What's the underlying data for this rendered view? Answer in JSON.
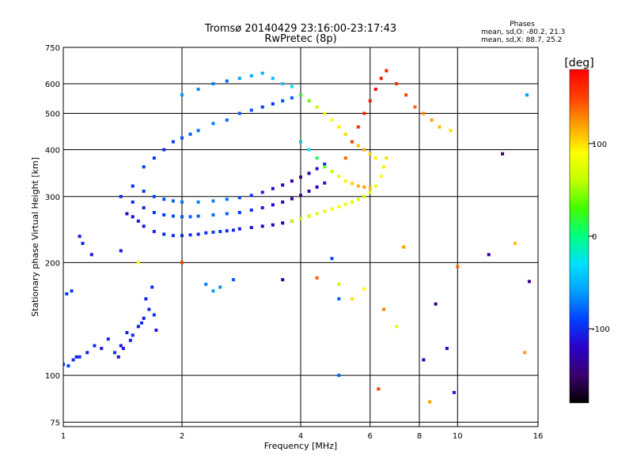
{
  "chart_data": {
    "type": "scatter",
    "title": "Tromsø 20140429 23:16:00-23:17:43",
    "subtitle": "RwPretec (8p)",
    "stats": {
      "heading": "Phases",
      "line_o": "mean, sd,O: -80.2, 21.3",
      "line_x": "mean, sd,X: 88.7, 25.2"
    },
    "xlabel": "Frequency [MHz]",
    "ylabel": "Stationary phase Virtual Height [km]",
    "x_scale": "log",
    "y_scale": "log",
    "xlim": [
      1,
      16
    ],
    "ylim": [
      73,
      750
    ],
    "x_ticks": [
      1,
      2,
      4,
      6,
      8,
      10,
      16
    ],
    "x_tick_labels": [
      "1",
      "2",
      "4",
      "6",
      "8",
      "10",
      "16"
    ],
    "y_ticks": [
      75,
      100,
      200,
      300,
      400,
      500,
      600,
      750
    ],
    "y_tick_labels": [
      "75",
      "100",
      "200",
      "300",
      "400",
      "500",
      "600",
      "750"
    ],
    "grid": true,
    "colorbar": {
      "label": "[deg]",
      "range": [
        -180,
        180
      ],
      "ticks": [
        100,
        0,
        -100
      ],
      "tick_labels": [
        "100",
        "0",
        "-100"
      ],
      "colors": [
        "#000000",
        "#3a0070",
        "#2a00c8",
        "#0040ff",
        "#00a0ff",
        "#00e0ff",
        "#00ff80",
        "#40ff00",
        "#c0ff00",
        "#ffff00",
        "#ffa000",
        "#ff4000",
        "#ff0000"
      ]
    },
    "series": [
      {
        "points": [
          [
            1.0,
            107,
            -95
          ],
          [
            1.03,
            106,
            -90
          ],
          [
            1.06,
            110,
            -100
          ],
          [
            1.1,
            112,
            -95
          ],
          [
            1.15,
            115,
            -105
          ],
          [
            1.2,
            120,
            -100
          ],
          [
            1.25,
            118,
            -110
          ],
          [
            1.3,
            125,
            -105
          ],
          [
            1.35,
            115,
            -100
          ],
          [
            1.4,
            120,
            -110
          ],
          [
            1.45,
            130,
            -105
          ],
          [
            1.5,
            128,
            -100
          ],
          [
            1.55,
            135,
            -110
          ],
          [
            1.6,
            142,
            -105
          ],
          [
            1.65,
            150,
            -100
          ],
          [
            1.7,
            145,
            -95
          ],
          [
            1.02,
            165,
            -90
          ],
          [
            1.05,
            168,
            -95
          ],
          [
            1.12,
            225,
            -100
          ],
          [
            1.18,
            210,
            -110
          ],
          [
            1.08,
            112,
            -105
          ],
          [
            1.38,
            112,
            -115
          ],
          [
            1.42,
            118,
            -110
          ],
          [
            1.48,
            124,
            -105
          ],
          [
            1.58,
            138,
            -100
          ],
          [
            1.62,
            160,
            -105
          ],
          [
            1.68,
            172,
            -100
          ],
          [
            1.72,
            132,
            -110
          ]
        ]
      },
      {
        "points": [
          [
            1.45,
            270,
            -120
          ],
          [
            1.5,
            265,
            -115
          ],
          [
            1.55,
            258,
            -110
          ],
          [
            1.6,
            250,
            -110
          ],
          [
            1.7,
            242,
            -105
          ],
          [
            1.8,
            238,
            -100
          ],
          [
            1.9,
            236,
            -100
          ],
          [
            2.0,
            236,
            -95
          ],
          [
            2.1,
            237,
            -100
          ],
          [
            2.2,
            238,
            -100
          ],
          [
            2.3,
            240,
            -95
          ],
          [
            2.4,
            241,
            -90
          ],
          [
            2.5,
            242,
            -95
          ],
          [
            2.6,
            243,
            -100
          ],
          [
            2.7,
            244,
            -100
          ],
          [
            2.8,
            246,
            -105
          ],
          [
            3.0,
            248,
            -110
          ],
          [
            3.2,
            250,
            -120
          ],
          [
            3.4,
            252,
            -130
          ],
          [
            3.6,
            255,
            -140
          ],
          [
            3.8,
            258,
            -145
          ]
        ]
      },
      {
        "points": [
          [
            1.4,
            300,
            -105
          ],
          [
            1.5,
            290,
            -100
          ],
          [
            1.6,
            280,
            -100
          ],
          [
            1.7,
            272,
            -95
          ],
          [
            1.8,
            268,
            -90
          ],
          [
            1.9,
            266,
            -85
          ],
          [
            2.0,
            265,
            -80
          ],
          [
            2.1,
            265,
            -80
          ],
          [
            2.2,
            266,
            -80
          ],
          [
            2.4,
            268,
            -75
          ],
          [
            2.6,
            270,
            -80
          ],
          [
            2.8,
            272,
            -90
          ],
          [
            3.0,
            276,
            -100
          ],
          [
            3.2,
            280,
            -110
          ],
          [
            3.4,
            285,
            -120
          ],
          [
            3.6,
            290,
            -130
          ],
          [
            3.8,
            296,
            -135
          ],
          [
            4.0,
            302,
            -140
          ],
          [
            4.2,
            310,
            -130
          ],
          [
            4.4,
            318,
            -120
          ],
          [
            4.6,
            326,
            -110
          ]
        ]
      },
      {
        "points": [
          [
            1.5,
            320,
            -100
          ],
          [
            1.6,
            310,
            -95
          ],
          [
            1.7,
            300,
            -90
          ],
          [
            1.8,
            295,
            -85
          ],
          [
            1.9,
            292,
            -80
          ],
          [
            2.0,
            290,
            -75
          ],
          [
            2.2,
            290,
            -70
          ],
          [
            2.4,
            292,
            -70
          ],
          [
            2.6,
            295,
            -75
          ],
          [
            2.8,
            298,
            -85
          ],
          [
            3.0,
            302,
            -95
          ],
          [
            3.2,
            308,
            -105
          ],
          [
            3.4,
            315,
            -115
          ],
          [
            3.6,
            322,
            -125
          ],
          [
            3.8,
            330,
            -130
          ],
          [
            4.0,
            338,
            -135
          ],
          [
            4.2,
            346,
            -125
          ],
          [
            4.4,
            356,
            -110
          ],
          [
            4.6,
            366,
            -100
          ]
        ]
      },
      {
        "points": [
          [
            3.8,
            258,
            60
          ],
          [
            4.0,
            262,
            65
          ],
          [
            4.2,
            266,
            70
          ],
          [
            4.4,
            270,
            75
          ],
          [
            4.6,
            274,
            80
          ],
          [
            4.8,
            278,
            85
          ],
          [
            5.0,
            282,
            85
          ],
          [
            5.2,
            286,
            80
          ],
          [
            5.4,
            290,
            75
          ],
          [
            5.6,
            295,
            70
          ],
          [
            5.8,
            300,
            75
          ],
          [
            6.0,
            308,
            80
          ],
          [
            6.2,
            320,
            85
          ],
          [
            6.4,
            340,
            90
          ],
          [
            6.5,
            360,
            95
          ],
          [
            6.6,
            380,
            100
          ]
        ]
      },
      {
        "points": [
          [
            1.6,
            360,
            -90
          ],
          [
            1.7,
            380,
            -95
          ],
          [
            1.8,
            400,
            -100
          ],
          [
            1.9,
            420,
            -90
          ],
          [
            2.0,
            430,
            -85
          ],
          [
            2.1,
            440,
            -80
          ],
          [
            2.2,
            450,
            -75
          ],
          [
            2.4,
            470,
            -70
          ],
          [
            2.6,
            480,
            -75
          ],
          [
            2.8,
            500,
            -80
          ],
          [
            3.0,
            510,
            -85
          ],
          [
            3.2,
            520,
            -90
          ],
          [
            3.4,
            530,
            -95
          ],
          [
            3.6,
            540,
            -85
          ],
          [
            3.8,
            550,
            -80
          ]
        ]
      },
      {
        "points": [
          [
            2.0,
            560,
            -60
          ],
          [
            2.2,
            580,
            -65
          ],
          [
            2.4,
            600,
            -70
          ],
          [
            2.6,
            610,
            -75
          ],
          [
            2.8,
            620,
            -60
          ],
          [
            3.0,
            630,
            -55
          ],
          [
            3.2,
            640,
            -50
          ],
          [
            3.4,
            620,
            -45
          ],
          [
            3.6,
            600,
            -40
          ],
          [
            3.8,
            590,
            -30
          ],
          [
            4.0,
            560,
            20
          ],
          [
            4.2,
            540,
            40
          ],
          [
            4.4,
            520,
            60
          ],
          [
            4.6,
            500,
            80
          ],
          [
            4.8,
            480,
            90
          ],
          [
            5.0,
            460,
            95
          ],
          [
            5.2,
            440,
            100
          ],
          [
            5.4,
            420,
            105
          ],
          [
            5.6,
            410,
            110
          ],
          [
            5.8,
            400,
            115
          ],
          [
            6.0,
            390,
            105
          ],
          [
            6.2,
            380,
            95
          ]
        ]
      },
      {
        "points": [
          [
            4.0,
            420,
            -40
          ],
          [
            4.2,
            400,
            -30
          ],
          [
            4.4,
            380,
            10
          ],
          [
            4.6,
            360,
            40
          ],
          [
            4.8,
            350,
            60
          ],
          [
            5.0,
            340,
            80
          ],
          [
            5.2,
            330,
            95
          ],
          [
            5.4,
            325,
            105
          ],
          [
            5.6,
            320,
            115
          ],
          [
            5.8,
            318,
            120
          ],
          [
            6.0,
            316,
            110
          ]
        ]
      },
      {
        "points": [
          [
            5.2,
            380,
            140
          ],
          [
            5.4,
            420,
            150
          ],
          [
            5.6,
            460,
            160
          ],
          [
            5.8,
            500,
            165
          ],
          [
            6.0,
            540,
            170
          ],
          [
            6.2,
            580,
            175
          ],
          [
            6.4,
            620,
            170
          ],
          [
            6.6,
            650,
            165
          ],
          [
            7.0,
            600,
            160
          ],
          [
            7.4,
            560,
            150
          ],
          [
            7.8,
            520,
            140
          ],
          [
            8.2,
            500,
            130
          ],
          [
            8.6,
            480,
            120
          ],
          [
            9.0,
            460,
            110
          ],
          [
            9.6,
            450,
            100
          ]
        ]
      },
      {
        "points": [
          [
            1.1,
            235,
            -105
          ],
          [
            1.4,
            215,
            -110
          ],
          [
            1.55,
            200,
            90
          ],
          [
            2.0,
            200,
            150
          ],
          [
            2.3,
            175,
            -70
          ],
          [
            2.4,
            168,
            -60
          ],
          [
            2.5,
            172,
            -65
          ],
          [
            2.7,
            180,
            -80
          ],
          [
            3.6,
            180,
            -140
          ],
          [
            4.4,
            182,
            140
          ],
          [
            4.8,
            205,
            -90
          ],
          [
            5.0,
            175,
            60
          ],
          [
            5.4,
            160,
            100
          ],
          [
            5.8,
            170,
            90
          ],
          [
            6.3,
            92,
            150
          ],
          [
            6.5,
            150,
            130
          ],
          [
            7.0,
            135,
            80
          ],
          [
            7.3,
            220,
            120
          ],
          [
            8.2,
            110,
            -120
          ],
          [
            8.5,
            85,
            120
          ],
          [
            8.8,
            155,
            -150
          ],
          [
            9.4,
            118,
            -120
          ],
          [
            9.8,
            90,
            -110
          ],
          [
            10.0,
            195,
            140
          ],
          [
            12.0,
            210,
            -130
          ],
          [
            13.0,
            390,
            -150
          ],
          [
            14.0,
            225,
            110
          ],
          [
            15.0,
            560,
            -60
          ],
          [
            15.2,
            178,
            -140
          ],
          [
            14.8,
            115,
            120
          ],
          [
            5.0,
            100,
            -80
          ],
          [
            5.0,
            160,
            -80
          ]
        ]
      }
    ]
  }
}
